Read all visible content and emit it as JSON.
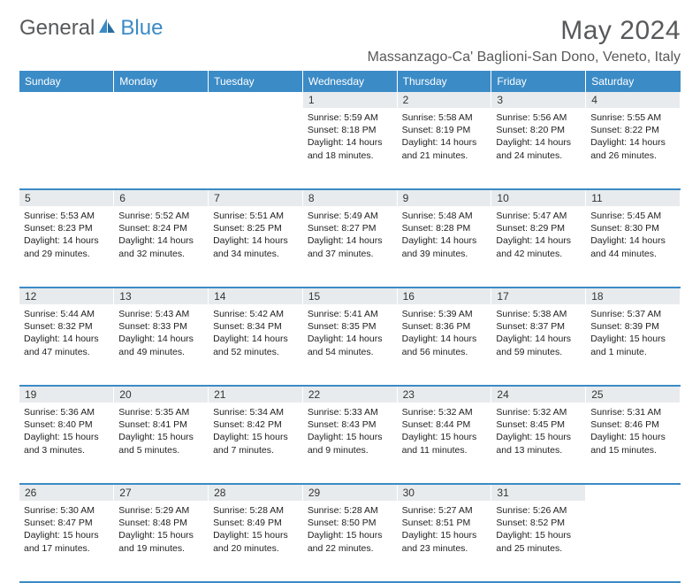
{
  "logo": {
    "part1": "General",
    "part2": "Blue"
  },
  "title": "May 2024",
  "location": "Massanzago-Ca' Baglioni-San Dono, Veneto, Italy",
  "colors": {
    "accent": "#3b8bc6",
    "header_text": "#58595b",
    "grid_bg": "#e8ebed"
  },
  "weekdays": [
    "Sunday",
    "Monday",
    "Tuesday",
    "Wednesday",
    "Thursday",
    "Friday",
    "Saturday"
  ],
  "weeks": [
    [
      null,
      null,
      null,
      {
        "n": "1",
        "sr": "5:59 AM",
        "ss": "8:18 PM",
        "dl": "14 hours and 18 minutes."
      },
      {
        "n": "2",
        "sr": "5:58 AM",
        "ss": "8:19 PM",
        "dl": "14 hours and 21 minutes."
      },
      {
        "n": "3",
        "sr": "5:56 AM",
        "ss": "8:20 PM",
        "dl": "14 hours and 24 minutes."
      },
      {
        "n": "4",
        "sr": "5:55 AM",
        "ss": "8:22 PM",
        "dl": "14 hours and 26 minutes."
      }
    ],
    [
      {
        "n": "5",
        "sr": "5:53 AM",
        "ss": "8:23 PM",
        "dl": "14 hours and 29 minutes."
      },
      {
        "n": "6",
        "sr": "5:52 AM",
        "ss": "8:24 PM",
        "dl": "14 hours and 32 minutes."
      },
      {
        "n": "7",
        "sr": "5:51 AM",
        "ss": "8:25 PM",
        "dl": "14 hours and 34 minutes."
      },
      {
        "n": "8",
        "sr": "5:49 AM",
        "ss": "8:27 PM",
        "dl": "14 hours and 37 minutes."
      },
      {
        "n": "9",
        "sr": "5:48 AM",
        "ss": "8:28 PM",
        "dl": "14 hours and 39 minutes."
      },
      {
        "n": "10",
        "sr": "5:47 AM",
        "ss": "8:29 PM",
        "dl": "14 hours and 42 minutes."
      },
      {
        "n": "11",
        "sr": "5:45 AM",
        "ss": "8:30 PM",
        "dl": "14 hours and 44 minutes."
      }
    ],
    [
      {
        "n": "12",
        "sr": "5:44 AM",
        "ss": "8:32 PM",
        "dl": "14 hours and 47 minutes."
      },
      {
        "n": "13",
        "sr": "5:43 AM",
        "ss": "8:33 PM",
        "dl": "14 hours and 49 minutes."
      },
      {
        "n": "14",
        "sr": "5:42 AM",
        "ss": "8:34 PM",
        "dl": "14 hours and 52 minutes."
      },
      {
        "n": "15",
        "sr": "5:41 AM",
        "ss": "8:35 PM",
        "dl": "14 hours and 54 minutes."
      },
      {
        "n": "16",
        "sr": "5:39 AM",
        "ss": "8:36 PM",
        "dl": "14 hours and 56 minutes."
      },
      {
        "n": "17",
        "sr": "5:38 AM",
        "ss": "8:37 PM",
        "dl": "14 hours and 59 minutes."
      },
      {
        "n": "18",
        "sr": "5:37 AM",
        "ss": "8:39 PM",
        "dl": "15 hours and 1 minute."
      }
    ],
    [
      {
        "n": "19",
        "sr": "5:36 AM",
        "ss": "8:40 PM",
        "dl": "15 hours and 3 minutes."
      },
      {
        "n": "20",
        "sr": "5:35 AM",
        "ss": "8:41 PM",
        "dl": "15 hours and 5 minutes."
      },
      {
        "n": "21",
        "sr": "5:34 AM",
        "ss": "8:42 PM",
        "dl": "15 hours and 7 minutes."
      },
      {
        "n": "22",
        "sr": "5:33 AM",
        "ss": "8:43 PM",
        "dl": "15 hours and 9 minutes."
      },
      {
        "n": "23",
        "sr": "5:32 AM",
        "ss": "8:44 PM",
        "dl": "15 hours and 11 minutes."
      },
      {
        "n": "24",
        "sr": "5:32 AM",
        "ss": "8:45 PM",
        "dl": "15 hours and 13 minutes."
      },
      {
        "n": "25",
        "sr": "5:31 AM",
        "ss": "8:46 PM",
        "dl": "15 hours and 15 minutes."
      }
    ],
    [
      {
        "n": "26",
        "sr": "5:30 AM",
        "ss": "8:47 PM",
        "dl": "15 hours and 17 minutes."
      },
      {
        "n": "27",
        "sr": "5:29 AM",
        "ss": "8:48 PM",
        "dl": "15 hours and 19 minutes."
      },
      {
        "n": "28",
        "sr": "5:28 AM",
        "ss": "8:49 PM",
        "dl": "15 hours and 20 minutes."
      },
      {
        "n": "29",
        "sr": "5:28 AM",
        "ss": "8:50 PM",
        "dl": "15 hours and 22 minutes."
      },
      {
        "n": "30",
        "sr": "5:27 AM",
        "ss": "8:51 PM",
        "dl": "15 hours and 23 minutes."
      },
      {
        "n": "31",
        "sr": "5:26 AM",
        "ss": "8:52 PM",
        "dl": "15 hours and 25 minutes."
      },
      null
    ]
  ],
  "labels": {
    "sunrise": "Sunrise:",
    "sunset": "Sunset:",
    "daylight": "Daylight:"
  }
}
